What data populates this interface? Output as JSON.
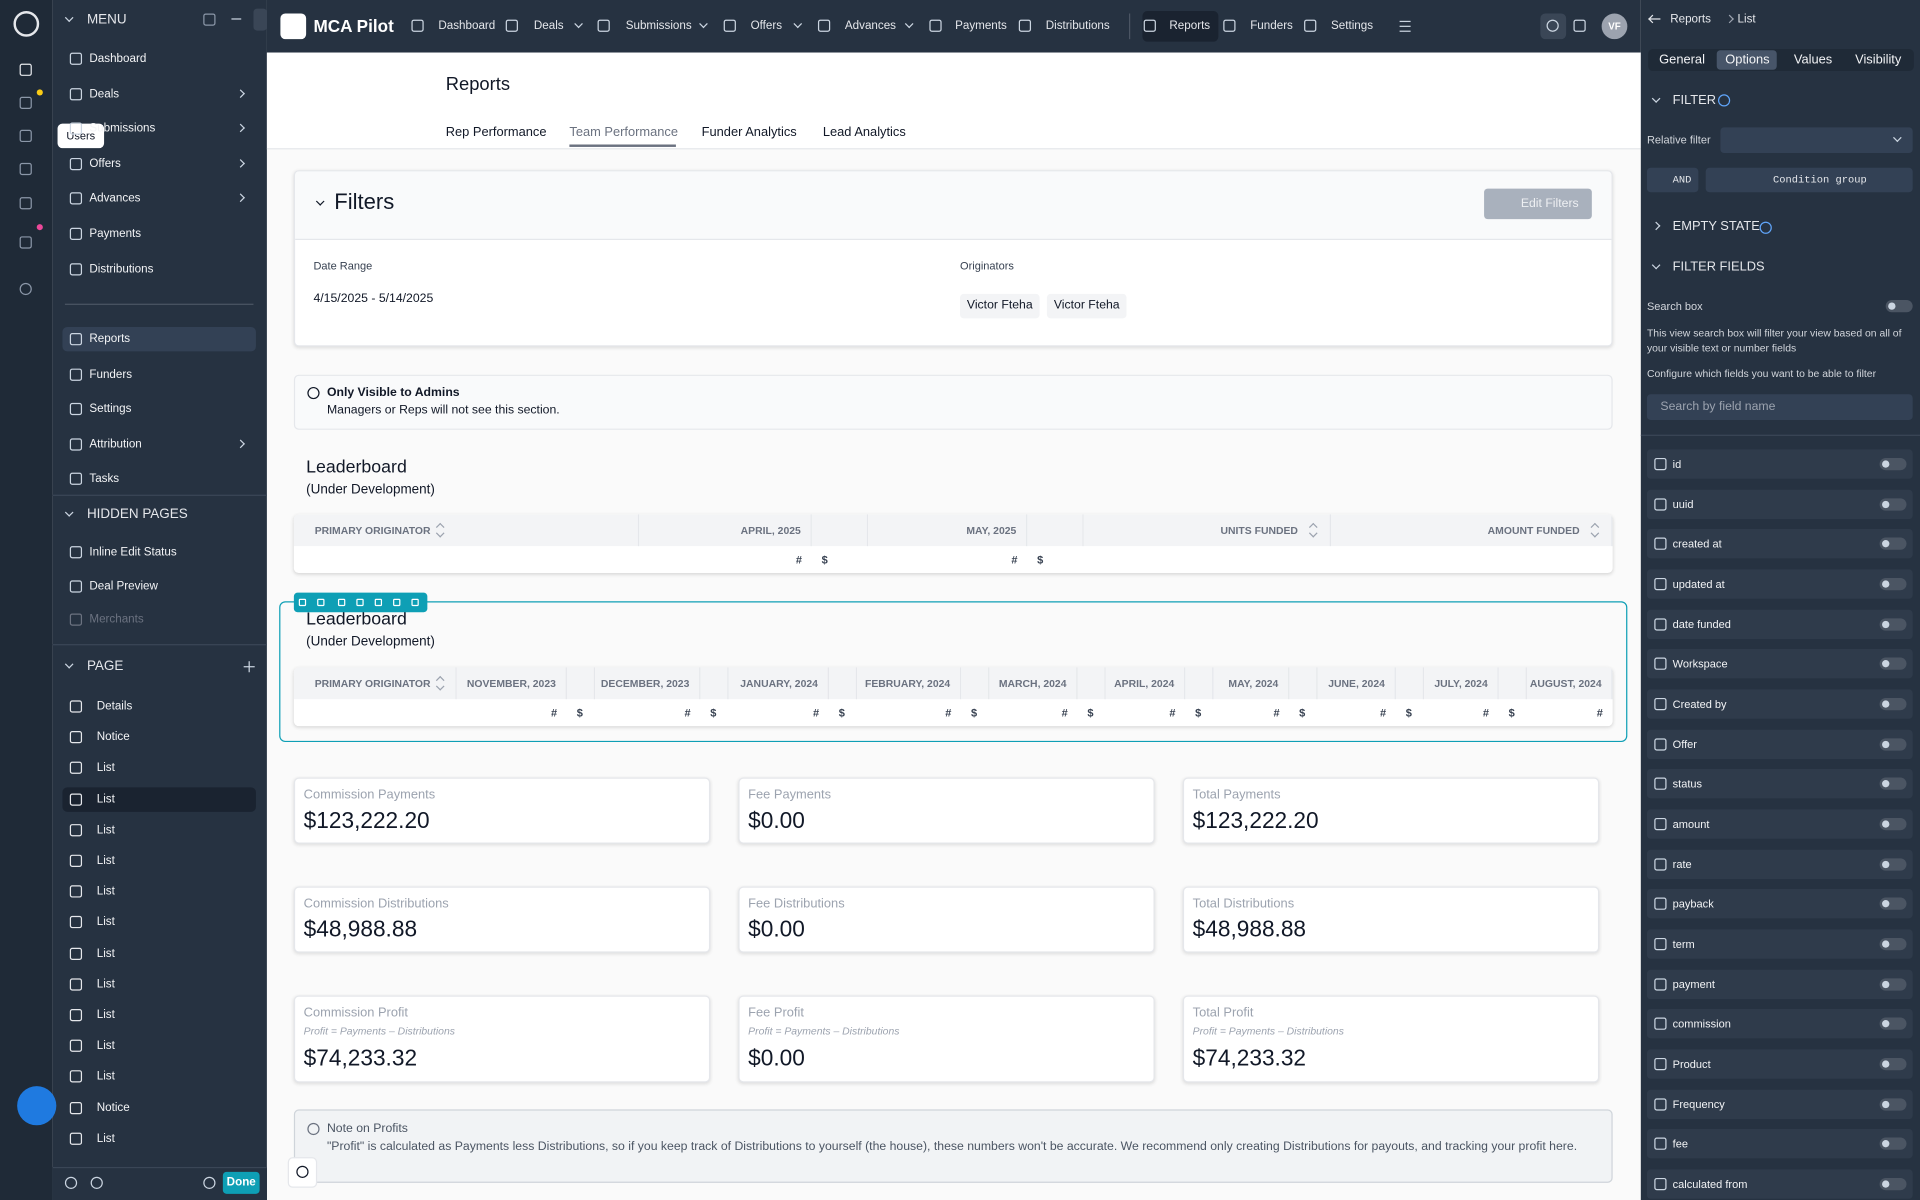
{
  "rail": {
    "tooltip": "Users"
  },
  "sidebar": {
    "menu_title": "MENU",
    "menu": [
      {
        "label": "Dashboard",
        "expandable": false
      },
      {
        "label": "Deals",
        "expandable": true
      },
      {
        "label": "Submissions",
        "expandable": true
      },
      {
        "label": "Offers",
        "expandable": true
      },
      {
        "label": "Advances",
        "expandable": true
      },
      {
        "label": "Payments",
        "expandable": false
      },
      {
        "label": "Distributions",
        "expandable": false
      }
    ],
    "menu2": [
      {
        "label": "Reports",
        "expandable": false,
        "active": true
      },
      {
        "label": "Funders",
        "expandable": false
      },
      {
        "label": "Settings",
        "expandable": false
      },
      {
        "label": "Attribution",
        "expandable": true
      },
      {
        "label": "Tasks",
        "expandable": false
      }
    ],
    "hidden_title": "HIDDEN PAGES",
    "hidden": [
      {
        "label": "Inline Edit Status"
      },
      {
        "label": "Deal Preview"
      },
      {
        "label": "Merchants",
        "dimmed": true
      }
    ],
    "page_title": "PAGE",
    "page_items": [
      {
        "label": "Details"
      },
      {
        "label": "Notice"
      },
      {
        "label": "List"
      },
      {
        "label": "List",
        "active": true
      },
      {
        "label": "List"
      },
      {
        "label": "List"
      },
      {
        "label": "List"
      },
      {
        "label": "List"
      },
      {
        "label": "List"
      },
      {
        "label": "List"
      },
      {
        "label": "List"
      },
      {
        "label": "List"
      },
      {
        "label": "List"
      },
      {
        "label": "Notice"
      },
      {
        "label": "List"
      }
    ],
    "done": "Done"
  },
  "topnav": {
    "brand": "MCA Pilot",
    "items": [
      {
        "label": "Dashboard",
        "dropdown": false
      },
      {
        "label": "Deals",
        "dropdown": true
      },
      {
        "label": "Submissions",
        "dropdown": true
      },
      {
        "label": "Offers",
        "dropdown": true
      },
      {
        "label": "Advances",
        "dropdown": true
      },
      {
        "label": "Payments",
        "dropdown": false
      },
      {
        "label": "Distributions",
        "dropdown": false
      },
      {
        "label": "Reports",
        "dropdown": false,
        "active": true
      },
      {
        "label": "Funders",
        "dropdown": false
      },
      {
        "label": "Settings",
        "dropdown": false
      }
    ],
    "avatar": "VF"
  },
  "main": {
    "title": "Reports",
    "tabs": [
      {
        "label": "Rep Performance"
      },
      {
        "label": "Team Performance",
        "active": true
      },
      {
        "label": "Funder Analytics"
      },
      {
        "label": "Lead Analytics"
      }
    ],
    "filters": {
      "title": "Filters",
      "button": "Edit Filters",
      "date_label": "Date Range",
      "date_value": "4/15/2025 - 5/14/2025",
      "originators_label": "Originators",
      "originators": [
        "Victor Fteha",
        "Victor Fteha"
      ]
    },
    "notice": {
      "title": "Only Visible to Admins",
      "text": "Managers or Reps will not see this section."
    },
    "leaderboards": [
      {
        "title": "Leaderboard",
        "subtitle": "(Under Development)",
        "first_column": "PRIMARY ORIGINATOR",
        "months": [
          {
            "label": "APRIL, 2025",
            "cells": [
              "#",
              "$"
            ]
          },
          {
            "label": "MAY, 2025",
            "cells": [
              "#",
              "$"
            ]
          }
        ],
        "extra_columns": [
          "UNITS FUNDED",
          "AMOUNT FUNDED"
        ]
      },
      {
        "title": "Leaderboard",
        "subtitle": "(Under Development)",
        "first_column": "PRIMARY ORIGINATOR",
        "months": [
          {
            "label": "NOVEMBER, 2023",
            "cells": [
              "#",
              "$"
            ]
          },
          {
            "label": "DECEMBER, 2023",
            "cells": [
              "#",
              "$"
            ]
          },
          {
            "label": "JANUARY, 2024",
            "cells": [
              "#",
              "$"
            ]
          },
          {
            "label": "FEBRUARY, 2024",
            "cells": [
              "#",
              "$"
            ]
          },
          {
            "label": "MARCH, 2024",
            "cells": [
              "#",
              "$"
            ]
          },
          {
            "label": "APRIL, 2024",
            "cells": [
              "#",
              "$"
            ]
          },
          {
            "label": "MAY, 2024",
            "cells": [
              "#",
              "$"
            ]
          },
          {
            "label": "JUNE, 2024",
            "cells": [
              "#",
              "$"
            ]
          },
          {
            "label": "JULY, 2024",
            "cells": [
              "#",
              "$"
            ]
          },
          {
            "label": "AUGUST, 2024",
            "cells": [
              "#"
            ]
          }
        ]
      }
    ],
    "stats": [
      {
        "label": "Commission Payments",
        "value": "$123,222.20"
      },
      {
        "label": "Fee Payments",
        "value": "$0.00"
      },
      {
        "label": "Total Payments",
        "value": "$123,222.20"
      },
      {
        "label": "Commission Distributions",
        "value": "$48,988.88"
      },
      {
        "label": "Fee Distributions",
        "value": "$0.00"
      },
      {
        "label": "Total Distributions",
        "value": "$48,988.88"
      },
      {
        "label": "Commission Profit",
        "formula": "Profit = Payments – Distributions",
        "value": "$74,233.32"
      },
      {
        "label": "Fee Profit",
        "formula": "Profit = Payments – Distributions",
        "value": "$0.00"
      },
      {
        "label": "Total Profit",
        "formula": "Profit = Payments – Distributions",
        "value": "$74,233.32"
      }
    ],
    "note": {
      "title": "Note on Profits",
      "text": "\"Profit\" is calculated as Payments less Distributions, so if you keep track of Distributions to yourself (the house), these numbers won't be accurate. We recommend only creating Distributions for payouts, and tracking your profit here."
    }
  },
  "panel": {
    "breadcrumb": [
      "Reports",
      "List"
    ],
    "tabs": [
      {
        "label": "General"
      },
      {
        "label": "Options",
        "active": true
      },
      {
        "label": "Values"
      },
      {
        "label": "Visibility"
      }
    ],
    "filter_title": "FILTER",
    "relative_filter": "Relative filter",
    "and": "AND",
    "condition_group": "Condition group",
    "empty_state": "EMPTY STATE",
    "filter_fields": "FILTER FIELDS",
    "search_box": "Search box",
    "search_desc": "This view search box will filter your view based on all of your visible text or number fields",
    "configure": "Configure which fields you want to be able to filter",
    "search_placeholder": "Search by field name",
    "fields": [
      "id",
      "uuid",
      "created at",
      "updated at",
      "date funded",
      "Workspace",
      "Created by",
      "Offer",
      "status",
      "amount",
      "rate",
      "payback",
      "term",
      "payment",
      "commission",
      "Product",
      "Frequency",
      "fee",
      "calculated from"
    ]
  }
}
